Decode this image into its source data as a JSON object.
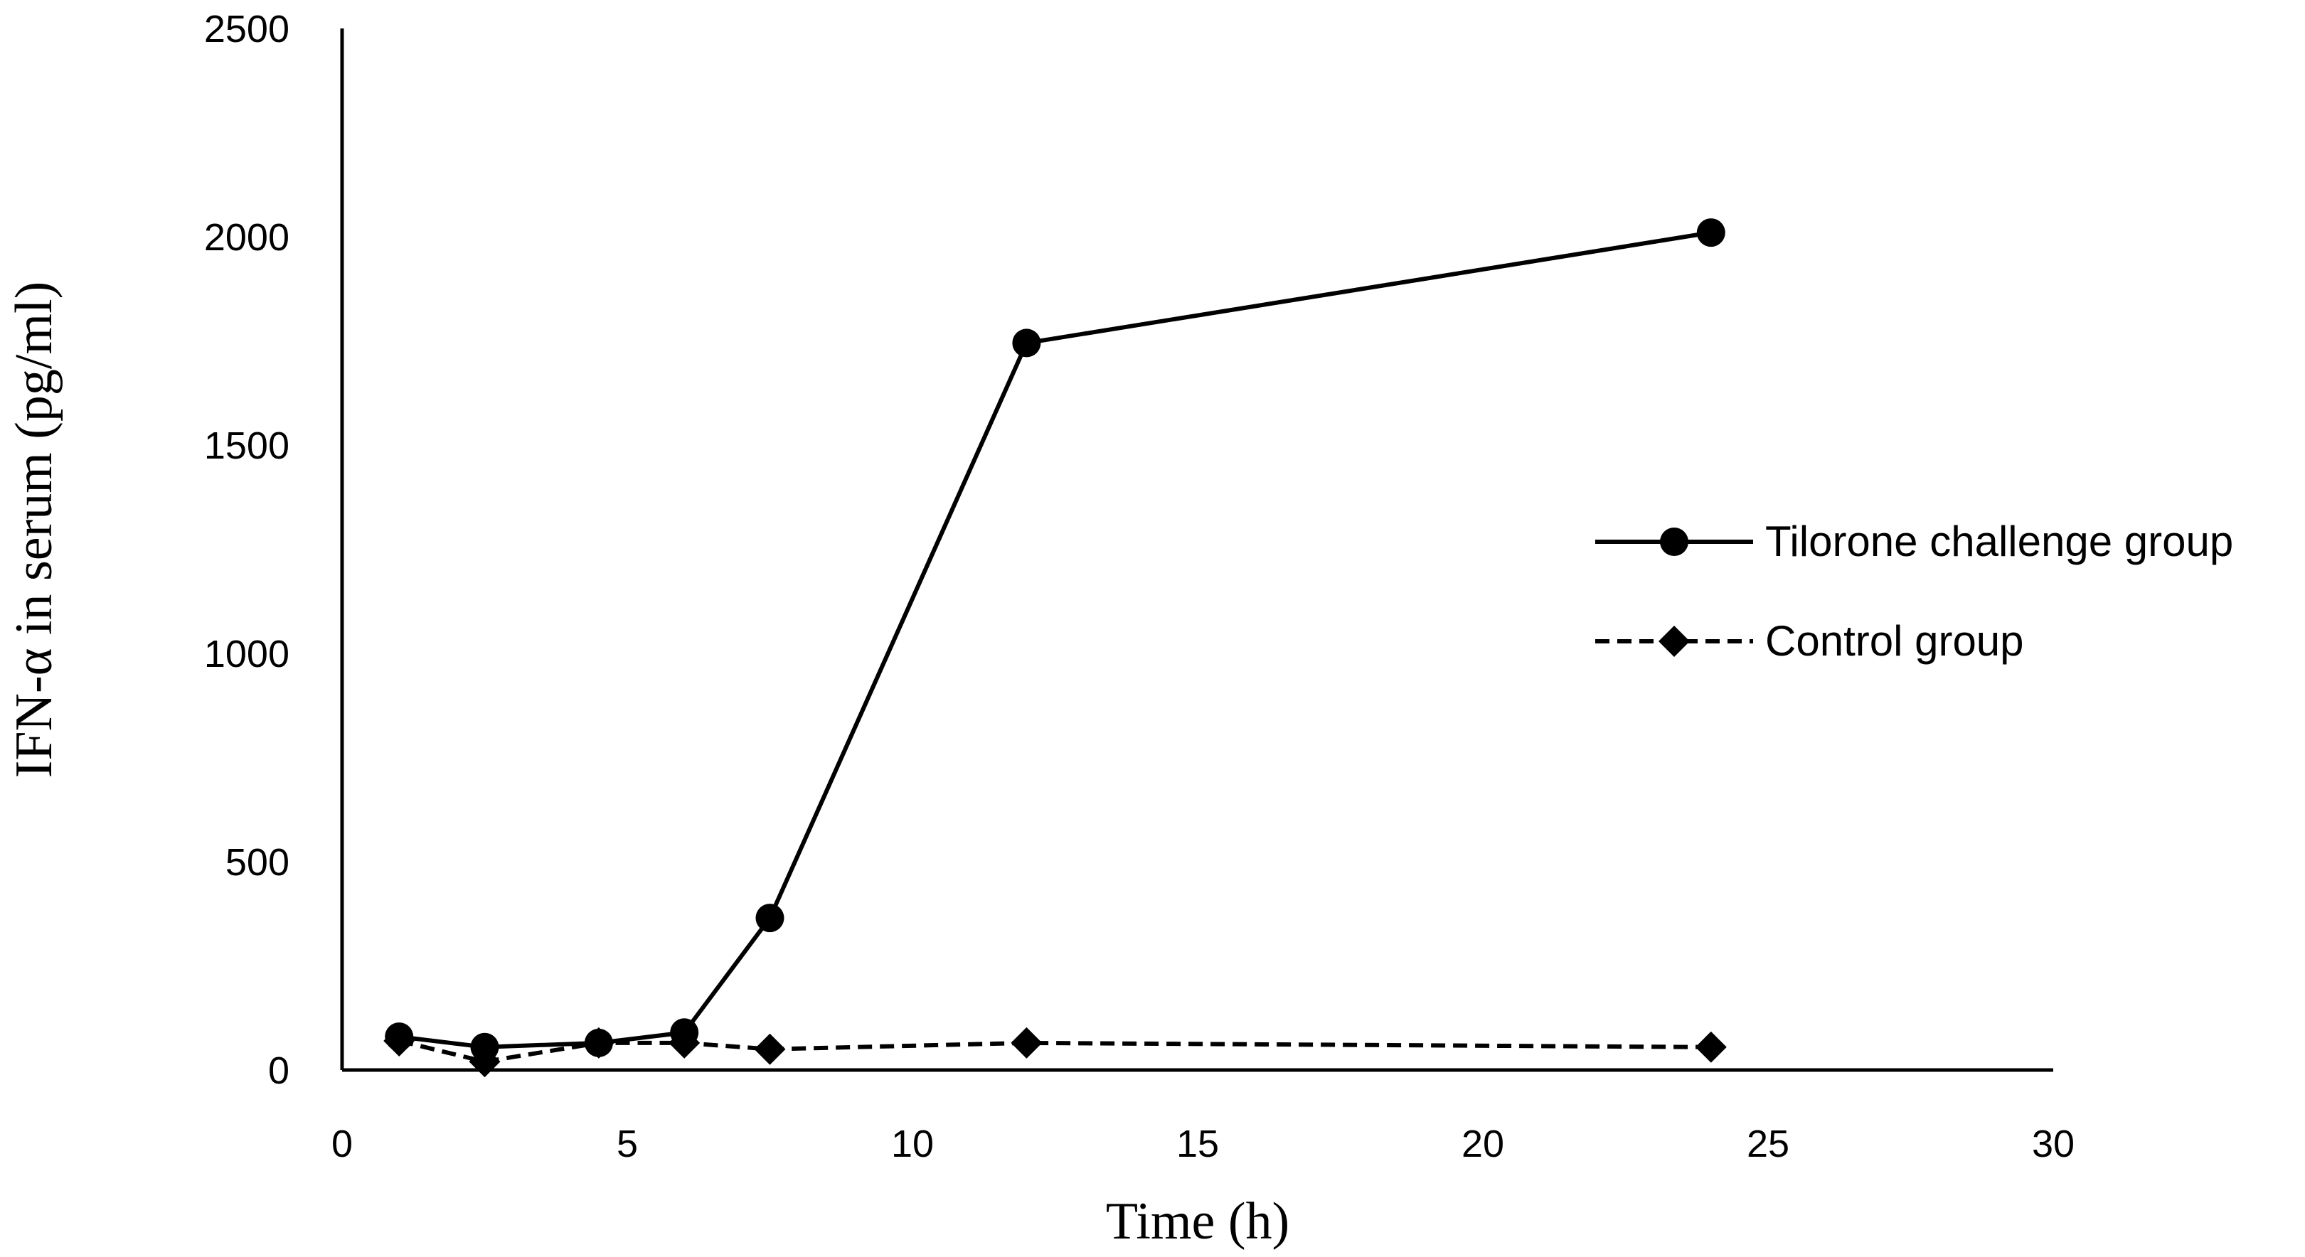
{
  "chart_data": {
    "type": "line",
    "title": "",
    "xlabel": "Time (h)",
    "ylabel": "IFN-α in serum (pg/ml)",
    "xlim": [
      0,
      30
    ],
    "ylim": [
      0,
      2500
    ],
    "xticks": [
      0,
      5,
      10,
      15,
      20,
      25,
      30
    ],
    "yticks": [
      0,
      500,
      1000,
      1500,
      2000,
      2500
    ],
    "x_tick_labels": [
      "0",
      "5",
      "10",
      "15",
      "20",
      "25",
      "30"
    ],
    "y_tick_labels": [
      "0",
      "500",
      "1000",
      "1500",
      "2000",
      "2500"
    ],
    "grid": false,
    "legend_position": "right",
    "series": [
      {
        "name": "Tilorone challenge group",
        "x": [
          1,
          2.5,
          4.5,
          6,
          7.5,
          12,
          24
        ],
        "values": [
          80,
          55,
          65,
          90,
          365,
          1745,
          2010
        ],
        "line_style": "solid",
        "marker": "circle",
        "color": "#000000"
      },
      {
        "name": "Control group",
        "x": [
          1,
          2.5,
          4.5,
          6,
          7.5,
          12,
          24
        ],
        "values": [
          70,
          20,
          65,
          65,
          50,
          65,
          55
        ],
        "line_style": "dashed",
        "marker": "diamond",
        "color": "#000000"
      }
    ]
  }
}
